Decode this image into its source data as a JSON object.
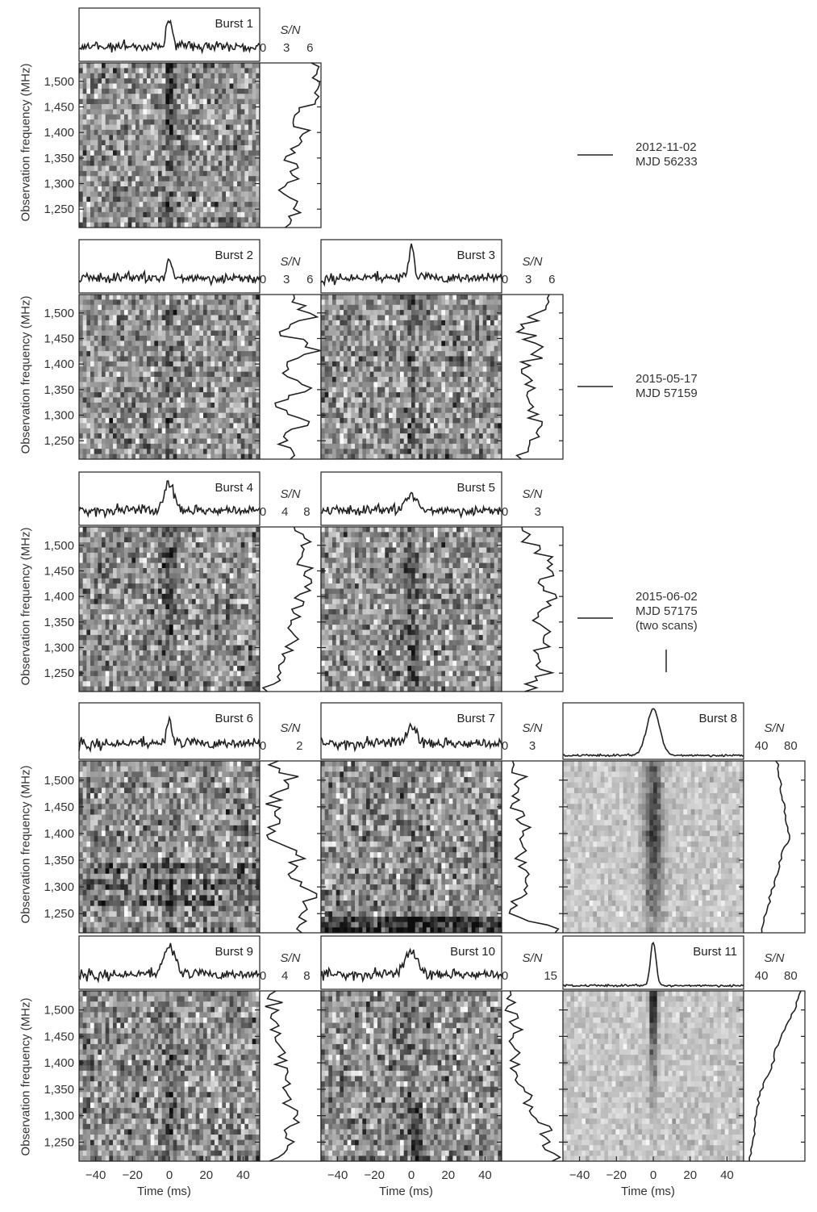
{
  "chart_data": {
    "type": "heatmap",
    "description_free": true,
    "ylabel": "Observation frequency (MHz)",
    "xlabel": "Time (ms)",
    "freq_ticks": [
      "1,250",
      "1,300",
      "1,350",
      "1,400",
      "1,450",
      "1,500"
    ],
    "freq_tick_values": [
      1250,
      1300,
      1350,
      1400,
      1450,
      1500
    ],
    "freq_range": [
      1214,
      1536
    ],
    "time_ticks": [
      "−40",
      "−20",
      "0",
      "20",
      "40"
    ],
    "time_tick_values": [
      -40,
      -20,
      0,
      20,
      40
    ],
    "time_range": [
      -49,
      49
    ],
    "sn_label": "S/N",
    "epochs": [
      {
        "date": "2012-11-02",
        "mjd": "MJD 56233",
        "note": ""
      },
      {
        "date": "2015-05-17",
        "mjd": "MJD 57159",
        "note": ""
      },
      {
        "date": "2015-06-02",
        "mjd": "MJD 57175",
        "note": "(two scans)"
      }
    ],
    "bursts": [
      {
        "name": "Burst 1",
        "sn_ticks": [
          "0",
          "3",
          "6"
        ],
        "sn_tick_values": [
          0,
          3,
          6
        ],
        "sn_max": 7,
        "width_ms": 1.5,
        "peak": 0.9,
        "drift": 0,
        "spectrum_profile": [
          0.5,
          0.7,
          0.4,
          0.6,
          0.5,
          0.8,
          0.6,
          0.9,
          0.95,
          1.0
        ]
      },
      {
        "name": "Burst 2",
        "sn_ticks": [
          "0",
          "3",
          "6"
        ],
        "sn_tick_values": [
          0,
          3,
          6
        ],
        "sn_max": 7,
        "width_ms": 1.5,
        "peak": 0.55,
        "drift": 0,
        "spectrum_profile": [
          0.6,
          0.3,
          0.9,
          0.2,
          0.8,
          0.3,
          1.0,
          0.3,
          0.9,
          0.5
        ]
      },
      {
        "name": "Burst 3",
        "sn_ticks": [
          "0",
          "3",
          "6"
        ],
        "sn_tick_values": [
          0,
          3,
          6
        ],
        "sn_max": 7,
        "width_ms": 1.5,
        "peak": 0.9,
        "drift": 0,
        "spectrum_profile": [
          0.3,
          0.5,
          0.6,
          0.4,
          0.5,
          0.3,
          0.6,
          0.3,
          0.7,
          0.8
        ]
      },
      {
        "name": "Burst 4",
        "sn_ticks": [
          "0",
          "4",
          "8"
        ],
        "sn_tick_values": [
          0,
          4,
          8
        ],
        "sn_max": 10,
        "width_ms": 2.5,
        "peak": 0.85,
        "drift": 0,
        "spectrum_profile": [
          0.1,
          0.3,
          0.5,
          0.6,
          0.55,
          0.7,
          0.9,
          0.75,
          0.8,
          0.5
        ]
      },
      {
        "name": "Burst 5",
        "sn_ticks": [
          "0",
          "3"
        ],
        "sn_tick_values": [
          0,
          3
        ],
        "sn_max": 5,
        "width_ms": 3,
        "peak": 0.5,
        "drift": 0,
        "spectrum_profile": [
          0.4,
          0.8,
          0.5,
          0.9,
          0.6,
          0.8,
          0.7,
          0.9,
          0.5,
          0.3
        ]
      },
      {
        "name": "Burst 6",
        "sn_ticks": [
          "0",
          "2"
        ],
        "sn_tick_values": [
          0,
          2
        ],
        "sn_max": 3,
        "width_ms": 1.5,
        "peak": 0.6,
        "drift": 0,
        "spectrum_profile": [
          0.8,
          0.6,
          1.0,
          0.4,
          0.7,
          0.1,
          0.3,
          0.1,
          0.5,
          0.2
        ]
      },
      {
        "name": "Burst 7",
        "sn_ticks": [
          "0",
          "3"
        ],
        "sn_tick_values": [
          0,
          3
        ],
        "sn_max": 6,
        "width_ms": 3,
        "peak": 0.45,
        "drift": 0,
        "spectrum_profile": [
          1.0,
          0.2,
          0.3,
          0.5,
          0.3,
          0.4,
          0.3,
          0.2,
          0.3,
          0.2
        ]
      },
      {
        "name": "Burst 8",
        "sn_ticks": [
          "40",
          "80"
        ],
        "sn_tick_values": [
          40,
          80
        ],
        "sn_max": 95,
        "sn_min": 20,
        "width_ms": 3.5,
        "peak": 1.0,
        "drift": 0,
        "spectrum_profile": [
          0.25,
          0.35,
          0.45,
          0.55,
          0.62,
          0.8,
          0.7,
          0.65,
          0.6,
          0.55
        ]
      },
      {
        "name": "Burst 9",
        "sn_ticks": [
          "0",
          "4",
          "8"
        ],
        "sn_tick_values": [
          0,
          4,
          8
        ],
        "sn_max": 10,
        "width_ms": 3,
        "peak": 0.85,
        "drift": 0,
        "spectrum_profile": [
          0.2,
          0.5,
          0.55,
          0.5,
          0.4,
          0.35,
          0.3,
          0.25,
          0.15,
          0.1
        ]
      },
      {
        "name": "Burst 10",
        "sn_ticks": [
          "0",
          "15"
        ],
        "sn_tick_values": [
          0,
          15
        ],
        "sn_max": 18,
        "width_ms": 3,
        "peak": 0.75,
        "drift": 3,
        "spectrum_profile": [
          0.85,
          0.75,
          0.7,
          0.5,
          0.3,
          0.25,
          0.2,
          0.2,
          0.15,
          0.1
        ]
      },
      {
        "name": "Burst 11",
        "sn_ticks": [
          "40",
          "80"
        ],
        "sn_tick_values": [
          40,
          80
        ],
        "sn_max": 95,
        "sn_min": 20,
        "width_ms": 1.5,
        "peak": 1.0,
        "drift": 0,
        "spectrum_profile": [
          0.05,
          0.1,
          0.15,
          0.2,
          0.3,
          0.45,
          0.55,
          0.7,
          0.85,
          1.0
        ]
      }
    ]
  }
}
